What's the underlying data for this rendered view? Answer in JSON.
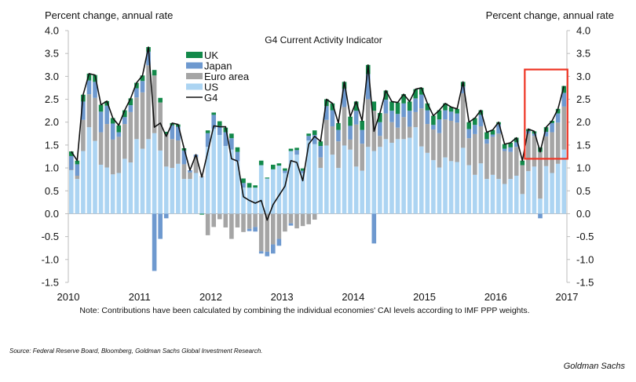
{
  "chart_data": {
    "type": "bar",
    "stacked": true,
    "title": "G4 Current Activity Indicator",
    "ylabel_left": "Percent change, annual rate",
    "ylabel_right": "Percent change, annual rate",
    "ylim": [
      -1.5,
      4.0
    ],
    "yticks": [
      "4.0",
      "3.5",
      "3.0",
      "2.5",
      "2.0",
      "1.5",
      "1.0",
      "0.5",
      "0.0",
      "-0.5",
      "-1.0",
      "-1.5"
    ],
    "ytick_values": [
      4.0,
      3.5,
      3.0,
      2.5,
      2.0,
      1.5,
      1.0,
      0.5,
      0.0,
      -0.5,
      -1.0,
      -1.5
    ],
    "xticks": [
      "2010",
      "2011",
      "2012",
      "2013",
      "2014",
      "2015",
      "2016",
      "2017"
    ],
    "x_start": "Jan 2010",
    "x_frequency": "monthly",
    "legend_position": "top-left",
    "legend": [
      "UK",
      "Japan",
      "Euro area",
      "US",
      "G4"
    ],
    "colors": {
      "US": "#acd4f2",
      "Euro area": "#a5a5a5",
      "Japan": "#6e99cf",
      "UK": "#13894a",
      "G4": "#111111",
      "highlight": "#ee3524"
    },
    "highlight_box": {
      "x_from_month_index": 77,
      "x_to_month_index": 83,
      "y_from": 1.2,
      "y_to": 3.15
    },
    "series": [
      {
        "name": "US",
        "values": [
          0.95,
          0.76,
          1.37,
          1.89,
          1.59,
          1.07,
          1.01,
          0.86,
          0.89,
          1.2,
          1.12,
          1.63,
          1.42,
          1.63,
          1.76,
          1.38,
          1.03,
          1.0,
          1.09,
          0.76,
          0.76,
          0.89,
          0.8,
          1.46,
          1.86,
          1.72,
          1.48,
          1.4,
          1.15,
          0.57,
          0.57,
          0.57,
          1.06,
          0.77,
          0.97,
          1.05,
          0.89,
          1.37,
          1.29,
          0.89,
          1.6,
          1.52,
          1.0,
          1.49,
          1.29,
          1.0,
          1.49,
          1.4,
          1.03,
          0.94,
          1.46,
          1.37,
          1.46,
          1.63,
          1.55,
          1.63,
          1.63,
          1.66,
          1.89,
          1.47,
          1.33,
          1.17,
          1.01,
          1.23,
          1.15,
          1.13,
          1.44,
          1.06,
          0.85,
          1.1,
          0.76,
          0.85,
          0.76,
          0.65,
          0.76,
          0.83,
          0.43,
          0.93,
          1.03,
          0.33,
          1.04,
          0.89,
          1.09,
          1.4
        ]
      },
      {
        "name": "Euro area",
        "values": [
          0.01,
          0.07,
          0.68,
          0.72,
          0.94,
          0.71,
          0.95,
          0.76,
          0.79,
          0.76,
          1.1,
          0.91,
          1.23,
          1.61,
          1.26,
          1.05,
          0.71,
          0.63,
          0.51,
          0.32,
          0.14,
          0.35,
          0.02,
          -0.47,
          -0.29,
          -0.12,
          -0.3,
          -0.55,
          -0.3,
          -0.4,
          -0.33,
          -0.29,
          -0.82,
          -0.83,
          -0.67,
          -0.55,
          -0.39,
          -0.21,
          -0.32,
          -0.27,
          -0.23,
          -0.13,
          0.23,
          0.56,
          0.62,
          0.58,
          0.84,
          0.22,
          0.92,
          0.59,
          1.04,
          0.88,
          0.24,
          0.56,
          0.45,
          0.25,
          0.48,
          0.24,
          0.33,
          0.83,
          0.63,
          0.67,
          0.75,
          0.83,
          0.88,
          0.86,
          1.19,
          0.59,
          0.89,
          0.81,
          0.77,
          0.83,
          0.99,
          0.72,
          0.59,
          0.63,
          0.63,
          0.82,
          0.67,
          1.02,
          0.65,
          0.89,
          0.9,
          0.94
        ]
      },
      {
        "name": "Japan",
        "values": [
          0.3,
          0.25,
          0.4,
          0.3,
          0.35,
          0.45,
          0.4,
          0.35,
          0.1,
          0.15,
          0.15,
          0.2,
          0.25,
          0.3,
          -1.25,
          -0.55,
          -0.1,
          0.3,
          0.3,
          0.3,
          0.05,
          0.05,
          0.0,
          0.3,
          0.3,
          0.2,
          0.3,
          0.25,
          0.2,
          0.1,
          -0.05,
          -0.1,
          -0.05,
          -0.1,
          -0.2,
          -0.15,
          0.05,
          -0.05,
          0.1,
          0.05,
          0.1,
          0.2,
          0.25,
          0.3,
          0.35,
          0.25,
          0.4,
          0.3,
          0.3,
          0.3,
          0.55,
          -0.65,
          0.3,
          0.3,
          0.25,
          0.3,
          0.3,
          0.35,
          0.3,
          0.3,
          0.3,
          0.1,
          0.3,
          0.2,
          0.2,
          0.2,
          0.15,
          0.2,
          0.2,
          0.25,
          0.1,
          0.05,
          0.2,
          0.05,
          0.1,
          0.1,
          0.0,
          0.05,
          0.05,
          -0.1,
          0.1,
          0.2,
          0.2,
          0.3
        ]
      },
      {
        "name": "UK",
        "values": [
          0.1,
          0.08,
          0.15,
          0.15,
          0.15,
          0.15,
          0.1,
          0.12,
          0.15,
          0.15,
          0.15,
          0.12,
          0.12,
          0.1,
          0.12,
          0.1,
          0.05,
          0.05,
          0.05,
          0.05,
          0.0,
          0.0,
          -0.02,
          0.06,
          0.05,
          0.1,
          0.1,
          0.1,
          0.1,
          0.1,
          0.1,
          0.05,
          0.1,
          0.02,
          0.1,
          0.05,
          0.05,
          0.05,
          0.05,
          0.05,
          0.05,
          0.1,
          0.1,
          0.15,
          0.15,
          0.15,
          0.15,
          0.2,
          0.2,
          0.2,
          0.2,
          0.2,
          0.2,
          0.2,
          0.2,
          0.25,
          0.2,
          0.2,
          0.2,
          0.15,
          0.15,
          0.2,
          0.2,
          0.15,
          0.1,
          0.1,
          0.1,
          0.15,
          0.15,
          0.1,
          0.15,
          0.1,
          0.05,
          0.1,
          0.1,
          0.1,
          0.1,
          0.05,
          0.05,
          0.1,
          0.1,
          0.05,
          0.1,
          0.15
        ]
      },
      {
        "name": "G4",
        "type": "line",
        "values": [
          1.36,
          1.16,
          2.6,
          3.06,
          3.03,
          2.38,
          2.46,
          2.09,
          1.93,
          2.26,
          2.52,
          2.86,
          3.02,
          3.64,
          1.89,
          1.98,
          1.69,
          1.98,
          1.95,
          1.43,
          0.95,
          1.29,
          0.8,
          1.35,
          1.92,
          1.9,
          1.9,
          1.2,
          1.15,
          0.37,
          0.29,
          0.23,
          0.29,
          -0.14,
          0.2,
          0.4,
          0.6,
          1.16,
          1.12,
          0.72,
          1.52,
          1.69,
          1.58,
          2.5,
          2.41,
          1.98,
          2.88,
          2.12,
          2.45,
          2.03,
          3.25,
          1.8,
          2.2,
          2.69,
          2.45,
          2.43,
          2.61,
          2.45,
          2.72,
          2.75,
          2.41,
          2.14,
          2.26,
          2.41,
          2.33,
          2.29,
          2.88,
          2.0,
          2.09,
          2.26,
          1.78,
          1.83,
          2.0,
          1.52,
          1.55,
          1.66,
          1.16,
          1.85,
          1.8,
          1.35,
          1.89,
          2.03,
          2.29,
          2.79
        ]
      }
    ],
    "note": "Note: Contributions have been calculated by combining the individual economies' CAI levels according to IMF PPP weights."
  },
  "footer": {
    "source": "Source: Federal Reserve Board, Bloomberg, Goldman Sachs Global Investment Research.",
    "brand": "Goldman Sachs"
  }
}
